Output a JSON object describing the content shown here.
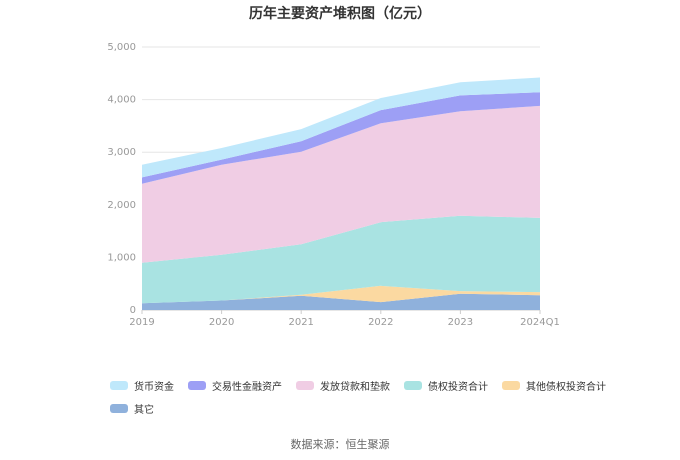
{
  "chart_data": {
    "type": "area",
    "stacked": true,
    "title": "历年主要资产堆积图（亿元）",
    "categories": [
      "2019",
      "2020",
      "2021",
      "2022",
      "2023",
      "2024Q1"
    ],
    "ylim": [
      0,
      5000
    ],
    "yticks": [
      "0",
      "1,000",
      "2,000",
      "3,000",
      "4,000",
      "5,000"
    ],
    "grid": true,
    "legend_position": "bottom",
    "series": [
      {
        "name": "其它",
        "color": "#8fb1dc",
        "values": [
          130,
          180,
          270,
          150,
          310,
          280
        ]
      },
      {
        "name": "其他债权投资合计",
        "color": "#fbd9a1",
        "values": [
          0,
          0,
          20,
          310,
          50,
          60
        ]
      },
      {
        "name": "债权投资合计",
        "color": "#a9e3e2",
        "values": [
          770,
          870,
          960,
          1210,
          1430,
          1410
        ]
      },
      {
        "name": "发放贷款和垫款",
        "color": "#f0cde4",
        "values": [
          1500,
          1710,
          1760,
          1880,
          1990,
          2130
        ]
      },
      {
        "name": "交易性金融资产",
        "color": "#9d9ff5",
        "values": [
          120,
          100,
          200,
          250,
          300,
          260
        ]
      },
      {
        "name": "货币资金",
        "color": "#bfe8fb",
        "values": [
          240,
          220,
          230,
          230,
          250,
          280
        ]
      }
    ],
    "legend_order": [
      "货币资金",
      "交易性金融资产",
      "发放贷款和垫款",
      "债权投资合计",
      "其他债权投资合计",
      "其它"
    ],
    "source": "数据来源：恒生聚源"
  }
}
